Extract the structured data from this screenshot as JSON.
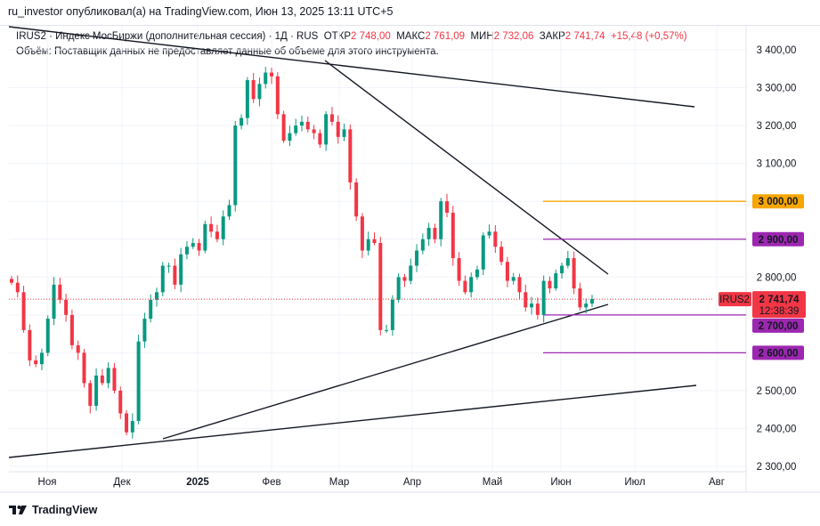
{
  "header": {
    "published": "ru_investor опубликовал(а) на TradingView.com, Июн 13, 2025 13:11 UTC+5"
  },
  "legend": {
    "symbol_info": "IRUS2 · Индекс МосБиржи (дополнительная сессия) · 1Д · RUS",
    "open_label": "ОТКР",
    "open": "2 748,00",
    "high_label": "МАКС",
    "high": "2 761,09",
    "low_label": "МИН",
    "low": "2 732,06",
    "close_label": "ЗАКР",
    "close": "2 741,74",
    "change": "+15,48 (+0,57%)",
    "volume_note": "Объём: Поставщик данных не предоставляет данные об объеме для этого инструмента."
  },
  "footer": {
    "brand": "TradingView"
  },
  "colors": {
    "up": "#089981",
    "down": "#f23645",
    "orange": "#f7a600",
    "purple": "#9c27b0",
    "grid": "#f0f3fa"
  },
  "chart_data": {
    "type": "candlestick",
    "symbol": "IRUS2",
    "timeframe": "1Д",
    "ylim": [
      2300,
      3400
    ],
    "y_ticks": [
      "3 400,00",
      "3 300,00",
      "3 200,00",
      "3 100,00",
      "3 000,00",
      "2 900,00",
      "2 800,00",
      "2 700,00",
      "2 600,00",
      "2 500,00",
      "2 400,00",
      "2 300,00"
    ],
    "y_tick_values": [
      3400,
      3300,
      3200,
      3100,
      3000,
      2900,
      2800,
      2700,
      2600,
      2500,
      2400,
      2300
    ],
    "x_ticks": [
      "Ноя",
      "Дек",
      "2025",
      "Фев",
      "Мар",
      "Апр",
      "Май",
      "Июн",
      "Июл",
      "Авг"
    ],
    "closes": [
      2785,
      2760,
      2660,
      2580,
      2570,
      2600,
      2690,
      2780,
      2740,
      2700,
      2620,
      2600,
      2520,
      2460,
      2540,
      2520,
      2560,
      2500,
      2440,
      2390,
      2420,
      2630,
      2690,
      2740,
      2760,
      2830,
      2830,
      2780,
      2860,
      2880,
      2890,
      2870,
      2940,
      2920,
      2900,
      2960,
      2990,
      3200,
      3220,
      3320,
      3270,
      3310,
      3340,
      3330,
      3230,
      3160,
      3180,
      3200,
      3210,
      3190,
      3180,
      3150,
      3230,
      3210,
      3170,
      3190,
      3050,
      2960,
      2870,
      2900,
      2890,
      2660,
      2660,
      2740,
      2800,
      2790,
      2830,
      2870,
      2900,
      2930,
      2900,
      3000,
      2970,
      2850,
      2790,
      2760,
      2800,
      2820,
      2910,
      2920,
      2880,
      2840,
      2790,
      2800,
      2760,
      2720,
      2730,
      2700,
      2790,
      2770,
      2810,
      2830,
      2850,
      2770,
      2720,
      2730,
      2742
    ],
    "last_price": {
      "symbol": "IRUS2",
      "value": "2 741,74",
      "countdown": "12:38:39",
      "numeric": 2741.74
    },
    "horizontal_levels": [
      {
        "value": 3000,
        "label": "3 000,00",
        "color": "orange"
      },
      {
        "value": 2900,
        "label": "2 900,00",
        "color": "purple"
      },
      {
        "value": 2700,
        "label": "2 700,00",
        "color": "purple"
      },
      {
        "value": 2600,
        "label": "2 600,00",
        "color": "purple"
      }
    ]
  }
}
